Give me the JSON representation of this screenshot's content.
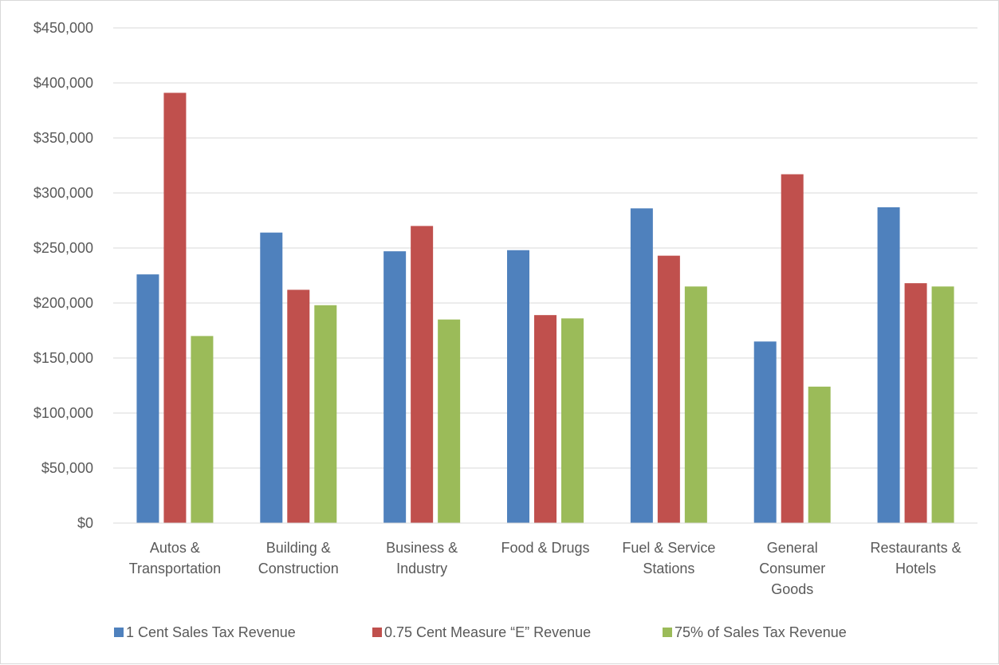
{
  "chart_data": {
    "type": "bar",
    "title": "",
    "xlabel": "",
    "ylabel": "",
    "categories": [
      [
        "Autos &",
        "Transportation"
      ],
      [
        "Building &",
        "Construction"
      ],
      [
        "Business &",
        "Industry"
      ],
      [
        "Food & Drugs"
      ],
      [
        "Fuel & Service",
        "Stations"
      ],
      [
        "General",
        "Consumer",
        "Goods"
      ],
      [
        "Restaurants &",
        "Hotels"
      ]
    ],
    "series": [
      {
        "name": "1 Cent Sales Tax Revenue",
        "color": "#4F81BD",
        "values": [
          226000,
          264000,
          247000,
          248000,
          286000,
          165000,
          287000
        ]
      },
      {
        "name": "0.75 Cent Measure “E” Revenue",
        "color": "#C0504D",
        "values": [
          391000,
          212000,
          270000,
          189000,
          243000,
          317000,
          218000
        ]
      },
      {
        "name": "75% of Sales Tax Revenue",
        "color": "#9BBB59",
        "values": [
          170000,
          198000,
          185000,
          186000,
          215000,
          124000,
          215000
        ]
      }
    ],
    "yticks": [
      "$0",
      "$50,000",
      "$100,000",
      "$150,000",
      "$200,000",
      "$250,000",
      "$300,000",
      "$350,000",
      "$400,000",
      "$450,000"
    ],
    "ylim": [
      0,
      450000
    ],
    "ytick_step": 50000,
    "grid": true,
    "legend_position": "bottom"
  }
}
